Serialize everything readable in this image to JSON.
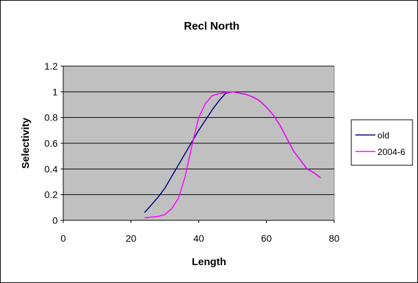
{
  "chart_data": {
    "type": "line",
    "title": "Recl North",
    "xlabel": "Length",
    "ylabel": "Selectivity",
    "xlim": [
      0,
      80
    ],
    "ylim": [
      0,
      1.2
    ],
    "x_ticks": [
      "0",
      "20",
      "40",
      "60",
      "80"
    ],
    "y_ticks": [
      "0",
      "0.2",
      "0.4",
      "0.6",
      "0.8",
      "1",
      "1.2"
    ],
    "grid": true,
    "legend_position": "right",
    "plot_background": "#c0c0c0",
    "series": [
      {
        "name": "old",
        "color": "#000080",
        "x": [
          24,
          26,
          28,
          30,
          32,
          34,
          36,
          38,
          40,
          42,
          44,
          46,
          48,
          50,
          52,
          54,
          56,
          58,
          60,
          62,
          64,
          66,
          68,
          70,
          72,
          74,
          76
        ],
        "y": [
          0.06,
          0.12,
          0.18,
          0.25,
          0.34,
          0.43,
          0.52,
          0.61,
          0.7,
          0.78,
          0.86,
          0.93,
          0.99,
          1.0,
          0.99,
          0.98,
          0.96,
          0.93,
          0.88,
          0.82,
          0.74,
          0.64,
          0.54,
          0.47,
          0.4,
          0.37,
          0.33
        ]
      },
      {
        "name": "2004-6",
        "color": "#ff00ff",
        "x": [
          24,
          26,
          28,
          30,
          32,
          34,
          36,
          38,
          40,
          42,
          44,
          46,
          48,
          50,
          52,
          54,
          56,
          58,
          60,
          62,
          64,
          66,
          68,
          70,
          72,
          74,
          76
        ],
        "y": [
          0.02,
          0.025,
          0.03,
          0.045,
          0.09,
          0.17,
          0.34,
          0.58,
          0.8,
          0.91,
          0.97,
          0.985,
          0.995,
          1.0,
          0.99,
          0.98,
          0.96,
          0.93,
          0.88,
          0.82,
          0.74,
          0.64,
          0.54,
          0.47,
          0.4,
          0.37,
          0.33
        ]
      }
    ]
  }
}
